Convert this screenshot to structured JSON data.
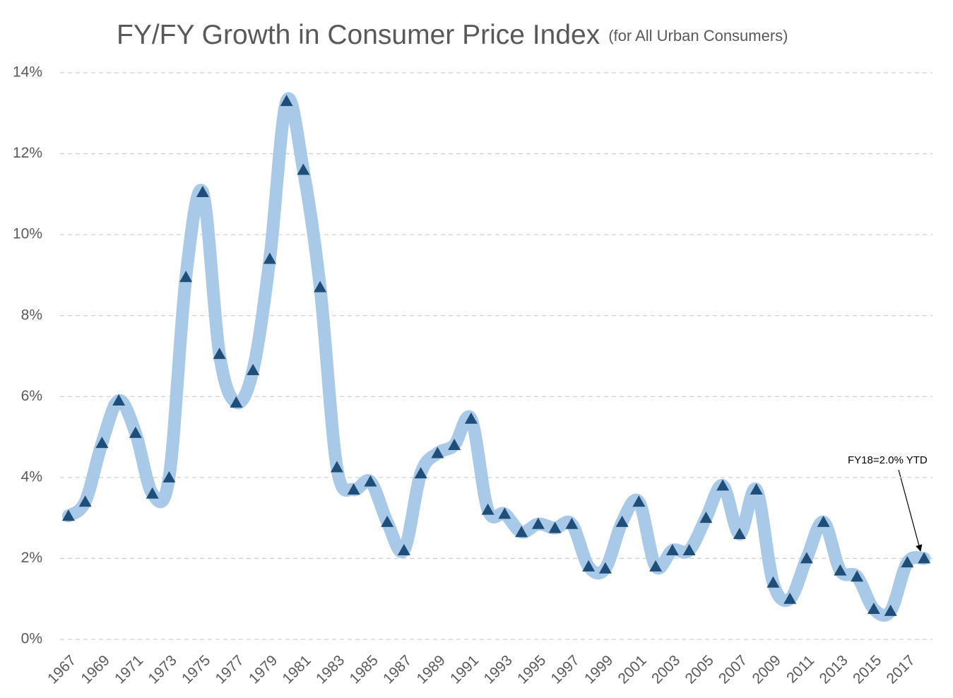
{
  "chart_data": {
    "type": "line",
    "title": "FY/FY Growth in Consumer Price Index",
    "subtitle": "(for All Urban Consumers)",
    "annotation": "FY18=2.0% YTD",
    "x": [
      1967,
      1968,
      1969,
      1970,
      1971,
      1972,
      1973,
      1974,
      1975,
      1976,
      1977,
      1978,
      1979,
      1980,
      1981,
      1982,
      1983,
      1984,
      1985,
      1986,
      1987,
      1988,
      1989,
      1990,
      1991,
      1992,
      1993,
      1994,
      1995,
      1996,
      1997,
      1998,
      1999,
      2000,
      2001,
      2002,
      2003,
      2004,
      2005,
      2006,
      2007,
      2008,
      2009,
      2010,
      2011,
      2012,
      2013,
      2014,
      2015,
      2016,
      2017,
      2018
    ],
    "values": [
      3.05,
      3.4,
      4.85,
      5.9,
      5.1,
      3.6,
      4.0,
      8.95,
      11.05,
      7.05,
      5.85,
      6.65,
      9.4,
      13.3,
      11.6,
      8.7,
      4.25,
      3.7,
      3.9,
      2.9,
      2.2,
      4.1,
      4.6,
      4.8,
      5.45,
      3.2,
      3.1,
      2.65,
      2.85,
      2.75,
      2.85,
      1.8,
      1.75,
      2.9,
      3.4,
      1.8,
      2.2,
      2.2,
      3.0,
      3.8,
      2.6,
      3.7,
      1.4,
      1.0,
      2.0,
      2.9,
      1.7,
      1.55,
      0.75,
      0.7,
      1.9,
      2.0
    ],
    "color": "#a9c9e8",
    "marker_color": "#1f4e79",
    "xlim": [
      1966.5,
      2018.5
    ],
    "xticks": [
      1967,
      1969,
      1971,
      1973,
      1975,
      1977,
      1979,
      1981,
      1983,
      1985,
      1987,
      1989,
      1991,
      1993,
      1995,
      1997,
      1999,
      2001,
      2003,
      2005,
      2007,
      2009,
      2011,
      2013,
      2015,
      2017
    ],
    "ylim": [
      0,
      14
    ],
    "yticks": [
      {
        "value": 0,
        "label": "0%"
      },
      {
        "value": 2,
        "label": "2%"
      },
      {
        "value": 4,
        "label": "4%"
      },
      {
        "value": 6,
        "label": "6%"
      },
      {
        "value": 8,
        "label": "8%"
      },
      {
        "value": 10,
        "label": "10%"
      },
      {
        "value": 12,
        "label": "12%"
      },
      {
        "value": 14,
        "label": "14%"
      }
    ],
    "grid": true
  }
}
